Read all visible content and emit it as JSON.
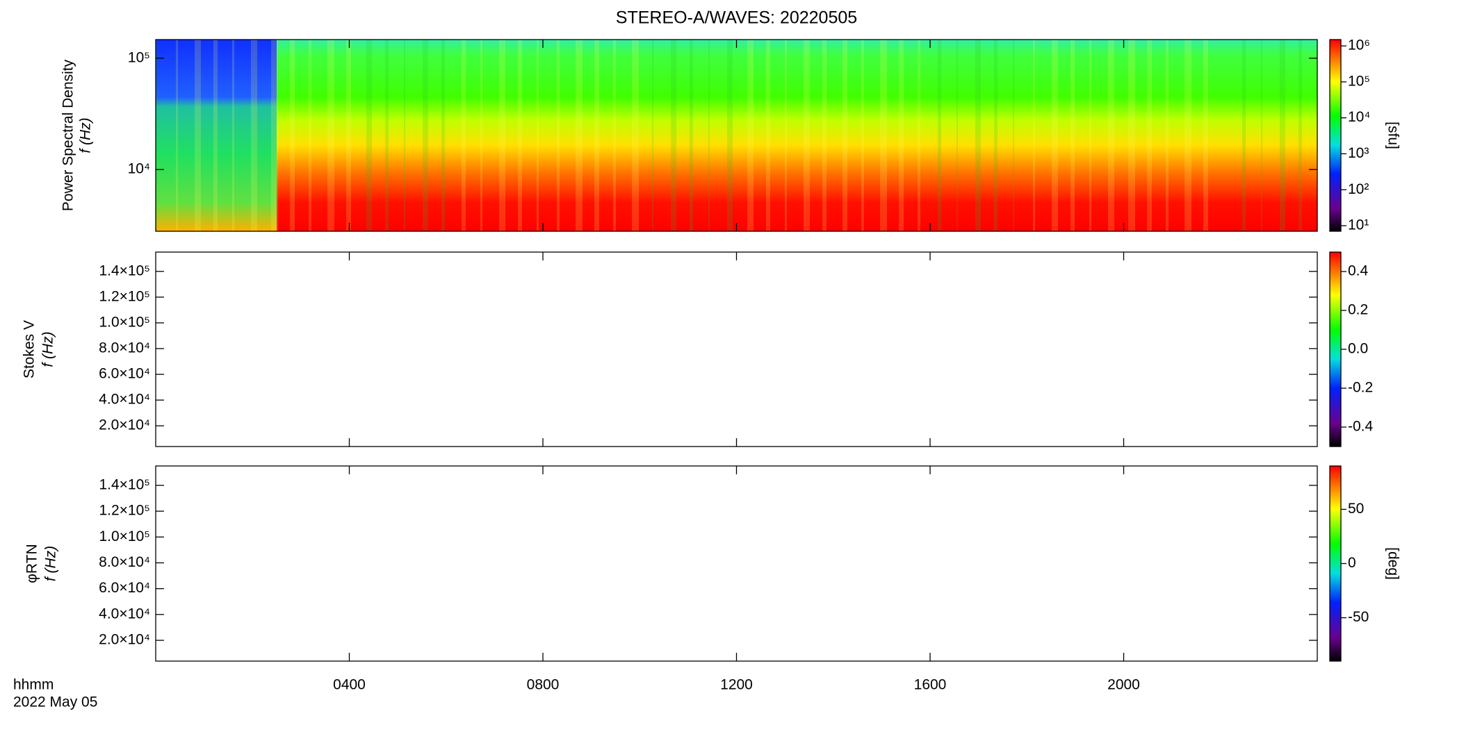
{
  "chart_data": [
    {
      "type": "spectrogram",
      "title": "STEREO-A/WAVES: 20220505",
      "ylabel": [
        "Power Spectral Density",
        "f (Hz)"
      ],
      "ylog": true,
      "ylim": [
        2790,
        147000
      ],
      "yticks": [
        {
          "value": 10000,
          "label": "10⁴"
        },
        {
          "value": 100000,
          "label": "10⁵"
        }
      ],
      "xlim": [
        0,
        24
      ],
      "colorbar": {
        "log": true,
        "lim": [
          7,
          1500000
        ],
        "label": "[sfu]",
        "ticks": [
          {
            "value": 10,
            "label": "10¹"
          },
          {
            "value": 100,
            "label": "10²"
          },
          {
            "value": 1000,
            "label": "10³"
          },
          {
            "value": 10000,
            "label": "10⁴"
          },
          {
            "value": 100000,
            "label": "10⁵"
          },
          {
            "value": 1000000,
            "label": "10⁶"
          }
        ]
      }
    },
    {
      "type": "empty-spectrogram",
      "ylabel": [
        "Stokes V",
        "f (Hz)"
      ],
      "ylog": false,
      "ylim": [
        3900,
        155000
      ],
      "yticks": [
        {
          "value": 20000,
          "label": "2.0×10⁴"
        },
        {
          "value": 40000,
          "label": "4.0×10⁴"
        },
        {
          "value": 60000,
          "label": "6.0×10⁴"
        },
        {
          "value": 80000,
          "label": "8.0×10⁴"
        },
        {
          "value": 100000,
          "label": "1.0×10⁵"
        },
        {
          "value": 120000,
          "label": "1.2×10⁵"
        },
        {
          "value": 140000,
          "label": "1.4×10⁵"
        }
      ],
      "xlim": [
        0,
        24
      ],
      "colorbar": {
        "log": false,
        "lim": [
          -0.5,
          0.5
        ],
        "ticks": [
          -0.4,
          -0.2,
          {
            "value": 0,
            "label": "0.0"
          },
          0.2,
          0.4
        ]
      }
    },
    {
      "type": "empty-spectrogram",
      "ylabel": [
        "φRTN",
        "f (Hz)"
      ],
      "ylog": false,
      "ylim": [
        3900,
        155000
      ],
      "yticks": [
        {
          "value": 20000,
          "label": "2.0×10⁴"
        },
        {
          "value": 40000,
          "label": "4.0×10⁴"
        },
        {
          "value": 60000,
          "label": "6.0×10⁴"
        },
        {
          "value": 80000,
          "label": "8.0×10⁴"
        },
        {
          "value": 100000,
          "label": "1.0×10⁵"
        },
        {
          "value": 120000,
          "label": "1.2×10⁵"
        },
        {
          "value": 140000,
          "label": "1.4×10⁵"
        }
      ],
      "xlim": [
        0,
        24
      ],
      "xticks": [
        {
          "value": 4,
          "label": "0400"
        },
        {
          "value": 8,
          "label": "0800"
        },
        {
          "value": 12,
          "label": "1200"
        },
        {
          "value": 16,
          "label": "1600"
        },
        {
          "value": 20,
          "label": "2000"
        }
      ],
      "xlabel": "hhmm",
      "date": "2022 May 05",
      "colorbar": {
        "log": false,
        "lim": [
          -90,
          90
        ],
        "label": "[deg]",
        "ticks": [
          -50,
          0,
          50
        ]
      }
    }
  ]
}
